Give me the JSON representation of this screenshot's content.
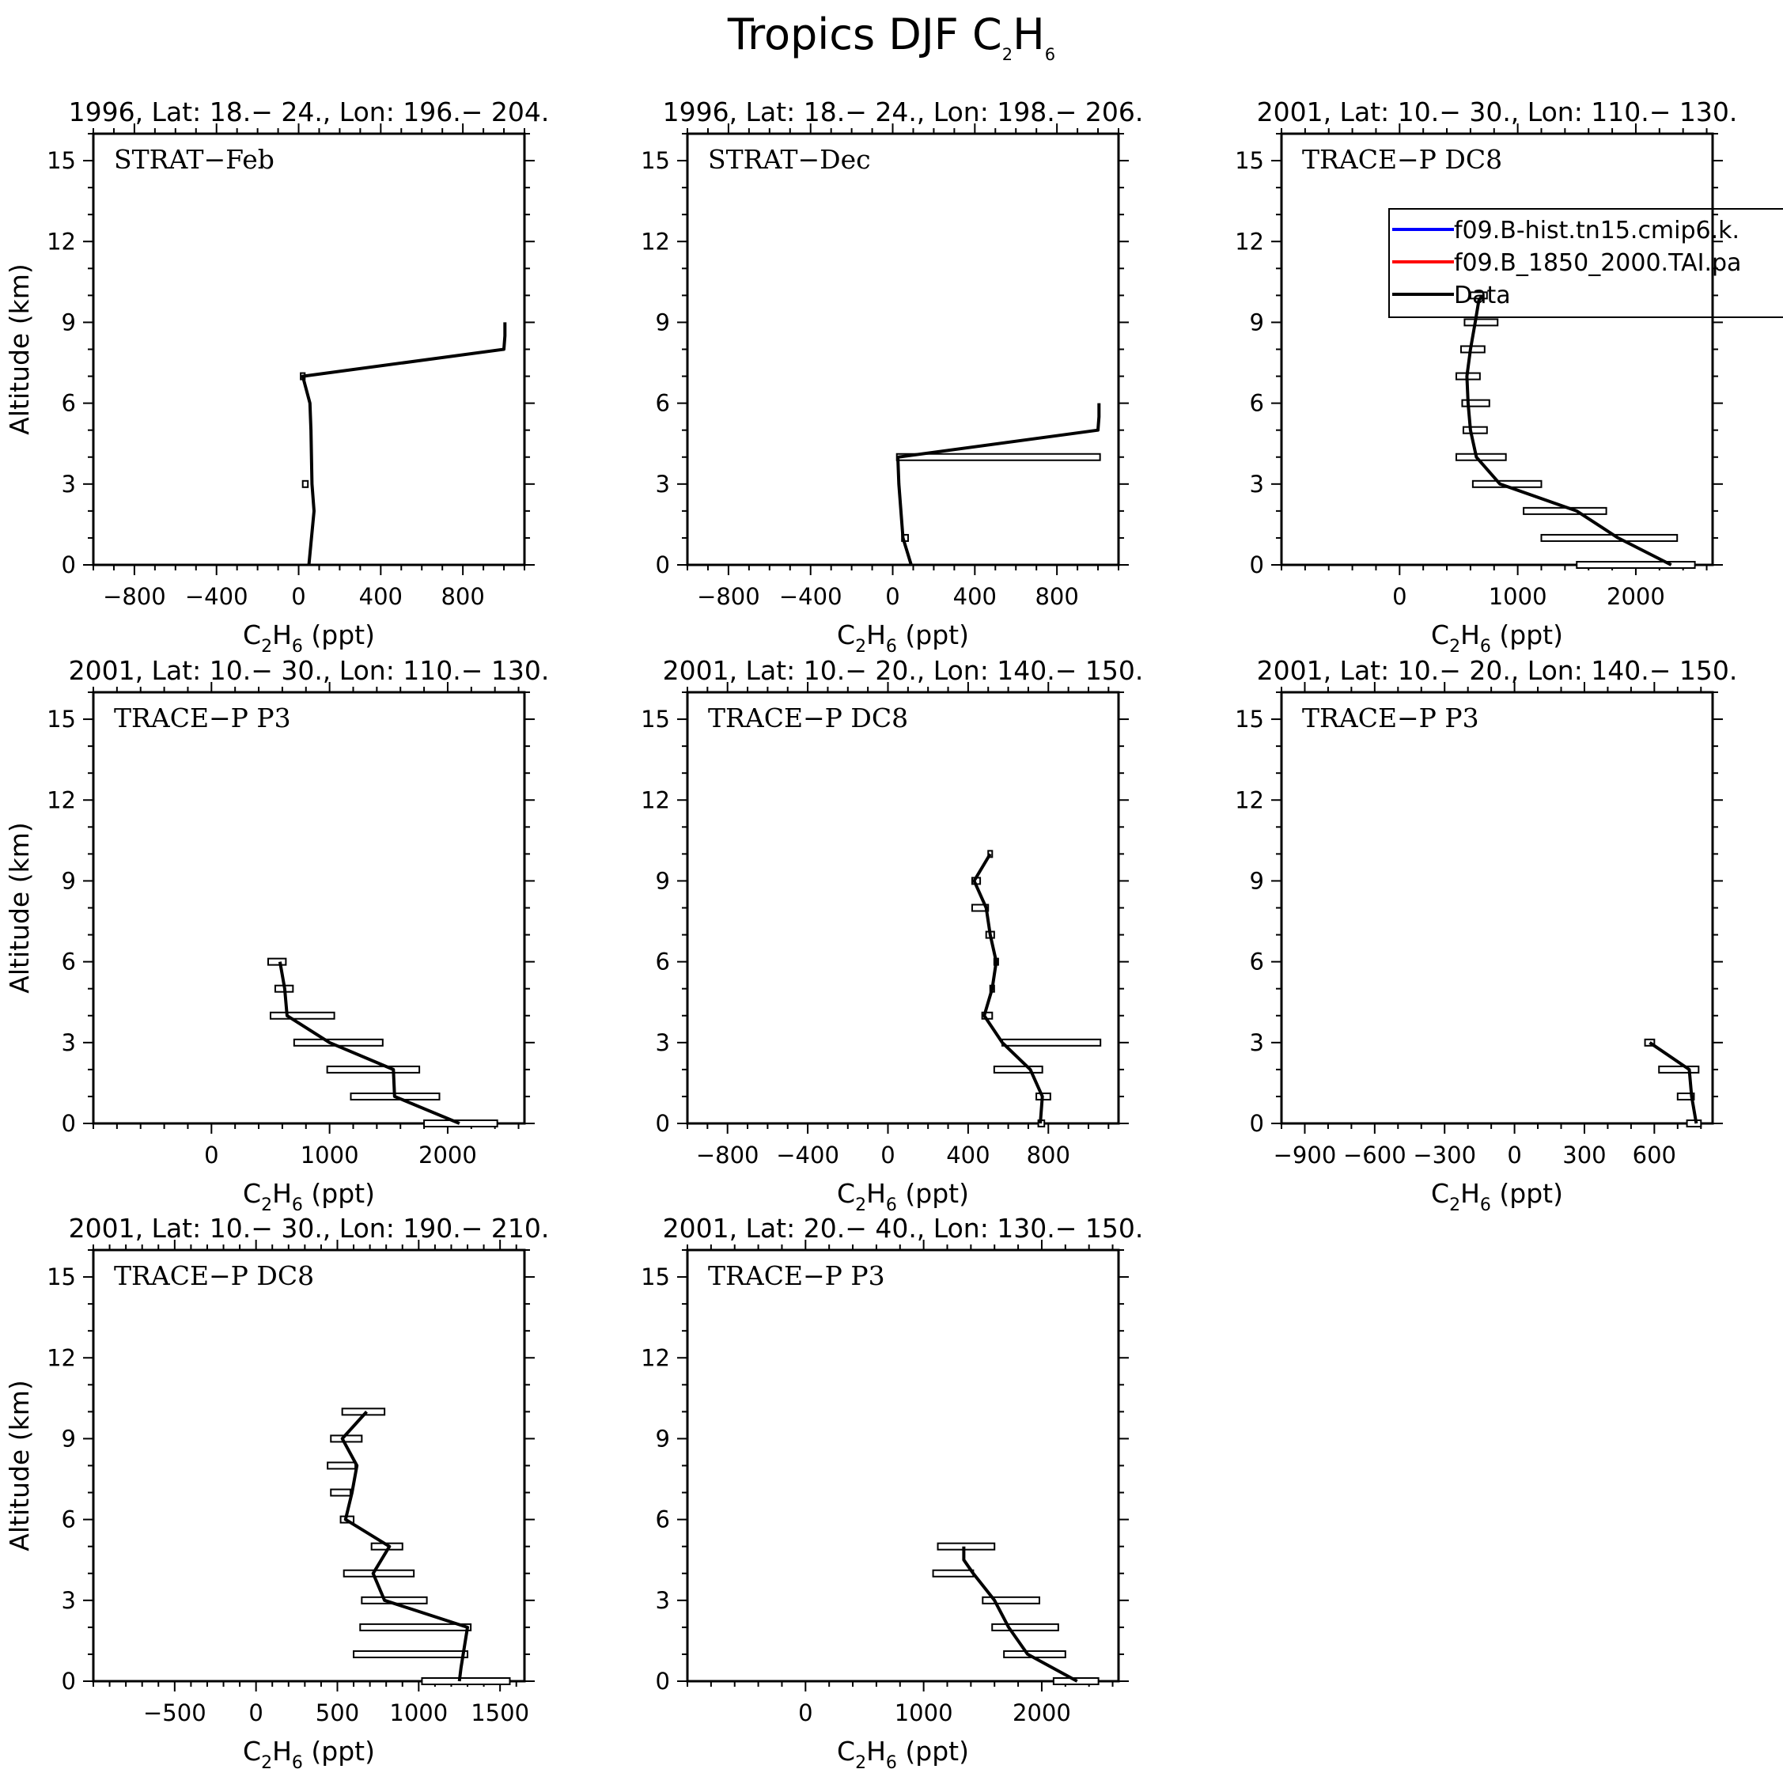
{
  "figure": {
    "title": {
      "pre": "Tropics DJF C",
      "sub1": "2",
      "mid": "H",
      "sub2": "6"
    }
  },
  "legend": {
    "entries": [
      {
        "label": "f09.B-hist.tn15.cmip6.k.",
        "color": "#0000ff"
      },
      {
        "label": "f09.B_1850_2000.TAI.pa",
        "color": "#ff0000"
      },
      {
        "label": "Data",
        "color": "#000000"
      }
    ]
  },
  "chart_data": [
    {
      "type": "line",
      "title": "1996, Lat: 18.− 24., Lon: 196.− 204.",
      "label": "STRAT−Feb",
      "xlim": [
        -1000,
        1100
      ],
      "ylim": [
        0,
        16
      ],
      "xticks": [
        -800,
        -400,
        0,
        400,
        800
      ],
      "xticklabels": [
        "−800",
        "−400",
        "0",
        "400",
        "800"
      ],
      "xminor": 100,
      "yticks": [
        0,
        3,
        6,
        9,
        12,
        15
      ],
      "yticklabels": [
        "0",
        "3",
        "6",
        "9",
        "12",
        "15"
      ],
      "xlabel": {
        "pre": "C",
        "sub1": "2",
        "mid": "H",
        "sub2": "6",
        "post": " (ppt)"
      },
      "ylabel": "Altitude (km)",
      "series": [
        {
          "name": "Data",
          "x": [
            50,
            75,
            65,
            60,
            55,
            20,
            1000,
            1005,
            1005
          ],
          "y": [
            0,
            2,
            3,
            5,
            6,
            7,
            8,
            8.5,
            9
          ]
        }
      ],
      "bars": [
        {
          "alt": 3,
          "lo": 20,
          "hi": 45
        },
        {
          "alt": 7,
          "lo": 10,
          "hi": 30
        }
      ]
    },
    {
      "type": "line",
      "title": "1996, Lat: 18.− 24., Lon: 198.− 206.",
      "label": "STRAT−Dec",
      "xlim": [
        -1000,
        1100
      ],
      "ylim": [
        0,
        16
      ],
      "xticks": [
        -800,
        -400,
        0,
        400,
        800
      ],
      "xticklabels": [
        "−800",
        "−400",
        "0",
        "400",
        "800"
      ],
      "xminor": 100,
      "yticks": [
        0,
        3,
        6,
        9,
        12,
        15
      ],
      "yticklabels": [
        "0",
        "3",
        "6",
        "9",
        "12",
        "15"
      ],
      "xlabel": {
        "pre": "C",
        "sub1": "2",
        "mid": "H",
        "sub2": "6",
        "post": " (ppt)"
      },
      "ylabel": "Altitude (km)",
      "series": [
        {
          "name": "Data",
          "x": [
            90,
            50,
            30,
            25,
            1000,
            1005,
            1005
          ],
          "y": [
            0,
            1,
            3,
            4,
            5,
            5.5,
            6
          ]
        }
      ],
      "bars": [
        {
          "alt": 1,
          "lo": 45,
          "hi": 75
        },
        {
          "alt": 4,
          "lo": 20,
          "hi": 1010
        }
      ]
    },
    {
      "type": "line",
      "title": "2001, Lat: 10.− 30., Lon: 110.− 130.",
      "label": "TRACE−P DC8",
      "xlim": [
        -1000,
        2650
      ],
      "ylim": [
        0,
        16
      ],
      "xticks": [
        0,
        1000,
        2000
      ],
      "xticklabels": [
        "0",
        "1000",
        "2000"
      ],
      "xminor": 200,
      "yticks": [
        0,
        3,
        6,
        9,
        12,
        15
      ],
      "yticklabels": [
        "0",
        "3",
        "6",
        "9",
        "12",
        "15"
      ],
      "xlabel": {
        "pre": "C",
        "sub1": "2",
        "mid": "H",
        "sub2": "6",
        "post": " (ppt)"
      },
      "ylabel": "Altitude (km)",
      "series": [
        {
          "name": "Data",
          "x": [
            2300,
            1850,
            1500,
            850,
            650,
            600,
            580,
            570,
            600,
            640,
            670,
            700
          ],
          "y": [
            0,
            1,
            2,
            3,
            4,
            5,
            6,
            7,
            8,
            9,
            9.8,
            10
          ]
        }
      ],
      "bars": [
        {
          "alt": 0,
          "lo": 1500,
          "hi": 2500
        },
        {
          "alt": 1,
          "lo": 1200,
          "hi": 2350
        },
        {
          "alt": 2,
          "lo": 1050,
          "hi": 1750
        },
        {
          "alt": 3,
          "lo": 620,
          "hi": 1200
        },
        {
          "alt": 4,
          "lo": 480,
          "hi": 900
        },
        {
          "alt": 5,
          "lo": 540,
          "hi": 740
        },
        {
          "alt": 6,
          "lo": 530,
          "hi": 760
        },
        {
          "alt": 7,
          "lo": 480,
          "hi": 680
        },
        {
          "alt": 8,
          "lo": 520,
          "hi": 720
        },
        {
          "alt": 9,
          "lo": 550,
          "hi": 830
        },
        {
          "alt": 10,
          "lo": 600,
          "hi": 740
        }
      ]
    },
    {
      "type": "line",
      "title": "2001, Lat: 10.− 30., Lon: 110.− 130.",
      "label": "TRACE−P P3",
      "xlim": [
        -1000,
        2650
      ],
      "ylim": [
        0,
        16
      ],
      "xticks": [
        0,
        1000,
        2000
      ],
      "xticklabels": [
        "0",
        "1000",
        "2000"
      ],
      "xminor": 200,
      "yticks": [
        0,
        3,
        6,
        9,
        12,
        15
      ],
      "yticklabels": [
        "0",
        "3",
        "6",
        "9",
        "12",
        "15"
      ],
      "xlabel": {
        "pre": "C",
        "sub1": "2",
        "mid": "H",
        "sub2": "6",
        "post": " (ppt)"
      },
      "ylabel": "Altitude (km)",
      "series": [
        {
          "name": "Data",
          "x": [
            2100,
            1550,
            1540,
            1000,
            640,
            620,
            580
          ],
          "y": [
            0,
            1,
            2,
            3,
            4,
            5,
            6
          ]
        }
      ],
      "bars": [
        {
          "alt": 0,
          "lo": 1800,
          "hi": 2420
        },
        {
          "alt": 1,
          "lo": 1180,
          "hi": 1930
        },
        {
          "alt": 2,
          "lo": 980,
          "hi": 1760
        },
        {
          "alt": 3,
          "lo": 700,
          "hi": 1450
        },
        {
          "alt": 4,
          "lo": 500,
          "hi": 1040
        },
        {
          "alt": 5,
          "lo": 540,
          "hi": 690
        },
        {
          "alt": 6,
          "lo": 480,
          "hi": 630
        }
      ]
    },
    {
      "type": "line",
      "title": "2001, Lat: 10.− 20., Lon: 140.− 150.",
      "label": "TRACE−P DC8",
      "xlim": [
        -1000,
        1150
      ],
      "ylim": [
        0,
        16
      ],
      "xticks": [
        -800,
        -400,
        0,
        400,
        800
      ],
      "xticklabels": [
        "−800",
        "−400",
        "0",
        "400",
        "800"
      ],
      "xminor": 100,
      "yticks": [
        0,
        3,
        6,
        9,
        12,
        15
      ],
      "yticklabels": [
        "0",
        "3",
        "6",
        "9",
        "12",
        "15"
      ],
      "xlabel": {
        "pre": "C",
        "sub1": "2",
        "mid": "H",
        "sub2": "6",
        "post": " (ppt)"
      },
      "ylabel": "Altitude (km)",
      "series": [
        {
          "name": "Data",
          "x": [
            760,
            770,
            710,
            570,
            480,
            520,
            540,
            510,
            490,
            430,
            510
          ],
          "y": [
            0,
            1,
            2,
            3,
            4,
            5,
            6,
            7,
            8,
            9,
            10
          ]
        }
      ],
      "bars": [
        {
          "alt": 0,
          "lo": 750,
          "hi": 780
        },
        {
          "alt": 1,
          "lo": 740,
          "hi": 810
        },
        {
          "alt": 2,
          "lo": 530,
          "hi": 770
        },
        {
          "alt": 3,
          "lo": 570,
          "hi": 1060
        },
        {
          "alt": 4,
          "lo": 470,
          "hi": 520
        },
        {
          "alt": 5,
          "lo": 510,
          "hi": 530
        },
        {
          "alt": 6,
          "lo": 530,
          "hi": 550
        },
        {
          "alt": 7,
          "lo": 490,
          "hi": 530
        },
        {
          "alt": 8,
          "lo": 420,
          "hi": 500
        },
        {
          "alt": 9,
          "lo": 420,
          "hi": 460
        },
        {
          "alt": 10,
          "lo": 500,
          "hi": 520
        }
      ]
    },
    {
      "type": "line",
      "title": "2001, Lat: 10.− 20., Lon: 140.− 150.",
      "label": "TRACE−P P3",
      "xlim": [
        -1000,
        850
      ],
      "ylim": [
        0,
        16
      ],
      "xticks": [
        -900,
        -600,
        -300,
        0,
        300,
        600
      ],
      "xticklabels": [
        "−900",
        "−600",
        "−300",
        "0",
        "300",
        "600"
      ],
      "xminor": 100,
      "yticks": [
        0,
        3,
        6,
        9,
        12,
        15
      ],
      "yticklabels": [
        "0",
        "3",
        "6",
        "9",
        "12",
        "15"
      ],
      "xlabel": {
        "pre": "C",
        "sub1": "2",
        "mid": "H",
        "sub2": "6",
        "post": " (ppt)"
      },
      "ylabel": "Altitude (km)",
      "series": [
        {
          "name": "Data",
          "x": [
            780,
            760,
            750,
            580
          ],
          "y": [
            0,
            1,
            2,
            3
          ]
        }
      ],
      "bars": [
        {
          "alt": 0,
          "lo": 740,
          "hi": 800
        },
        {
          "alt": 1,
          "lo": 700,
          "hi": 770
        },
        {
          "alt": 2,
          "lo": 620,
          "hi": 790
        },
        {
          "alt": 3,
          "lo": 560,
          "hi": 600
        }
      ]
    },
    {
      "type": "line",
      "title": "2001, Lat: 10.− 30., Lon: 190.− 210.",
      "label": "TRACE−P DC8",
      "xlim": [
        -1000,
        1650
      ],
      "ylim": [
        0,
        16
      ],
      "xticks": [
        -500,
        0,
        500,
        1000,
        1500
      ],
      "xticklabels": [
        "−500",
        "0",
        "500",
        "1000",
        "1500"
      ],
      "xminor": 100,
      "yticks": [
        0,
        3,
        6,
        9,
        12,
        15
      ],
      "yticklabels": [
        "0",
        "3",
        "6",
        "9",
        "12",
        "15"
      ],
      "xlabel": {
        "pre": "C",
        "sub1": "2",
        "mid": "H",
        "sub2": "6",
        "post": " (ppt)"
      },
      "ylabel": "Altitude (km)",
      "series": [
        {
          "name": "Data",
          "x": [
            1250,
            1260,
            1300,
            790,
            720,
            820,
            550,
            590,
            620,
            530,
            680
          ],
          "y": [
            0,
            0.5,
            2,
            3,
            4,
            5,
            6,
            7,
            8,
            9,
            10
          ]
        }
      ],
      "bars": [
        {
          "alt": 0,
          "lo": 1020,
          "hi": 1560
        },
        {
          "alt": 1,
          "lo": 600,
          "hi": 1300
        },
        {
          "alt": 2,
          "lo": 640,
          "hi": 1320
        },
        {
          "alt": 3,
          "lo": 650,
          "hi": 1050
        },
        {
          "alt": 4,
          "lo": 540,
          "hi": 970
        },
        {
          "alt": 5,
          "lo": 710,
          "hi": 900
        },
        {
          "alt": 6,
          "lo": 520,
          "hi": 600
        },
        {
          "alt": 7,
          "lo": 460,
          "hi": 580
        },
        {
          "alt": 8,
          "lo": 440,
          "hi": 610
        },
        {
          "alt": 9,
          "lo": 460,
          "hi": 650
        },
        {
          "alt": 10,
          "lo": 530,
          "hi": 790
        }
      ]
    },
    {
      "type": "line",
      "title": "2001, Lat: 20.− 40., Lon: 130.− 150.",
      "label": "TRACE−P P3",
      "xlim": [
        -1000,
        2650
      ],
      "ylim": [
        0,
        16
      ],
      "xticks": [
        0,
        1000,
        2000
      ],
      "xticklabels": [
        "0",
        "1000",
        "2000"
      ],
      "xminor": 200,
      "yticks": [
        0,
        3,
        6,
        9,
        12,
        15
      ],
      "yticklabels": [
        "0",
        "3",
        "6",
        "9",
        "12",
        "15"
      ],
      "xlabel": {
        "pre": "C",
        "sub1": "2",
        "mid": "H",
        "sub2": "6",
        "post": " (ppt)"
      },
      "ylabel": "Altitude (km)",
      "series": [
        {
          "name": "Data",
          "x": [
            2300,
            1880,
            1720,
            1600,
            1420,
            1340,
            1340
          ],
          "y": [
            0,
            1,
            2,
            3,
            4,
            4.5,
            5
          ]
        }
      ],
      "bars": [
        {
          "alt": 0,
          "lo": 2100,
          "hi": 2480
        },
        {
          "alt": 1,
          "lo": 1680,
          "hi": 2200
        },
        {
          "alt": 2,
          "lo": 1580,
          "hi": 2140
        },
        {
          "alt": 3,
          "lo": 1500,
          "hi": 1980
        },
        {
          "alt": 4,
          "lo": 1080,
          "hi": 1420
        },
        {
          "alt": 5,
          "lo": 1120,
          "hi": 1600
        }
      ]
    }
  ]
}
